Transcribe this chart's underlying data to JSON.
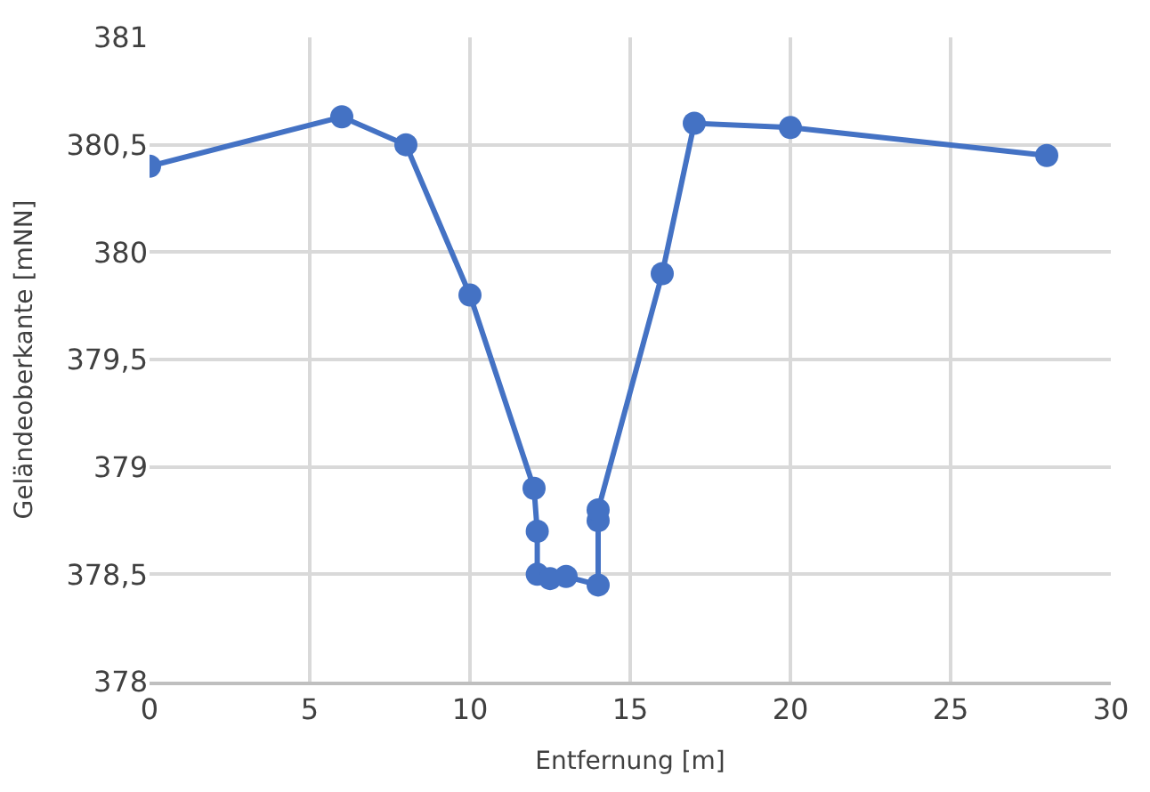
{
  "chart_data": {
    "type": "line",
    "xlabel": "Entfernung [m]",
    "ylabel": "Geländeoberkante [mNN]",
    "x": [
      0,
      6,
      8,
      10,
      12,
      12.1,
      12.1,
      12.5,
      13,
      14,
      14,
      14,
      16,
      17,
      20,
      28
    ],
    "series": [
      {
        "color": "#4472c4",
        "values": [
          380.4,
          380.63,
          380.5,
          379.8,
          378.9,
          378.7,
          378.5,
          378.48,
          378.49,
          378.45,
          378.75,
          378.8,
          379.9,
          380.6,
          380.58,
          380.45
        ]
      }
    ],
    "xlim": [
      0,
      30
    ],
    "xticks": [
      0,
      5,
      10,
      15,
      20,
      25,
      30
    ],
    "ylim": [
      378,
      381
    ],
    "yticks": [
      {
        "value": 378,
        "label": "378"
      },
      {
        "value": 378.5,
        "label": "378,5"
      },
      {
        "value": 379,
        "label": "379"
      },
      {
        "value": 379.5,
        "label": "379,5"
      },
      {
        "value": 380,
        "label": "380"
      },
      {
        "value": 380.5,
        "label": "380,5"
      },
      {
        "value": 381,
        "label": "381"
      }
    ],
    "grid": true,
    "marker": "circle",
    "line_style": "solid",
    "legend": false
  }
}
